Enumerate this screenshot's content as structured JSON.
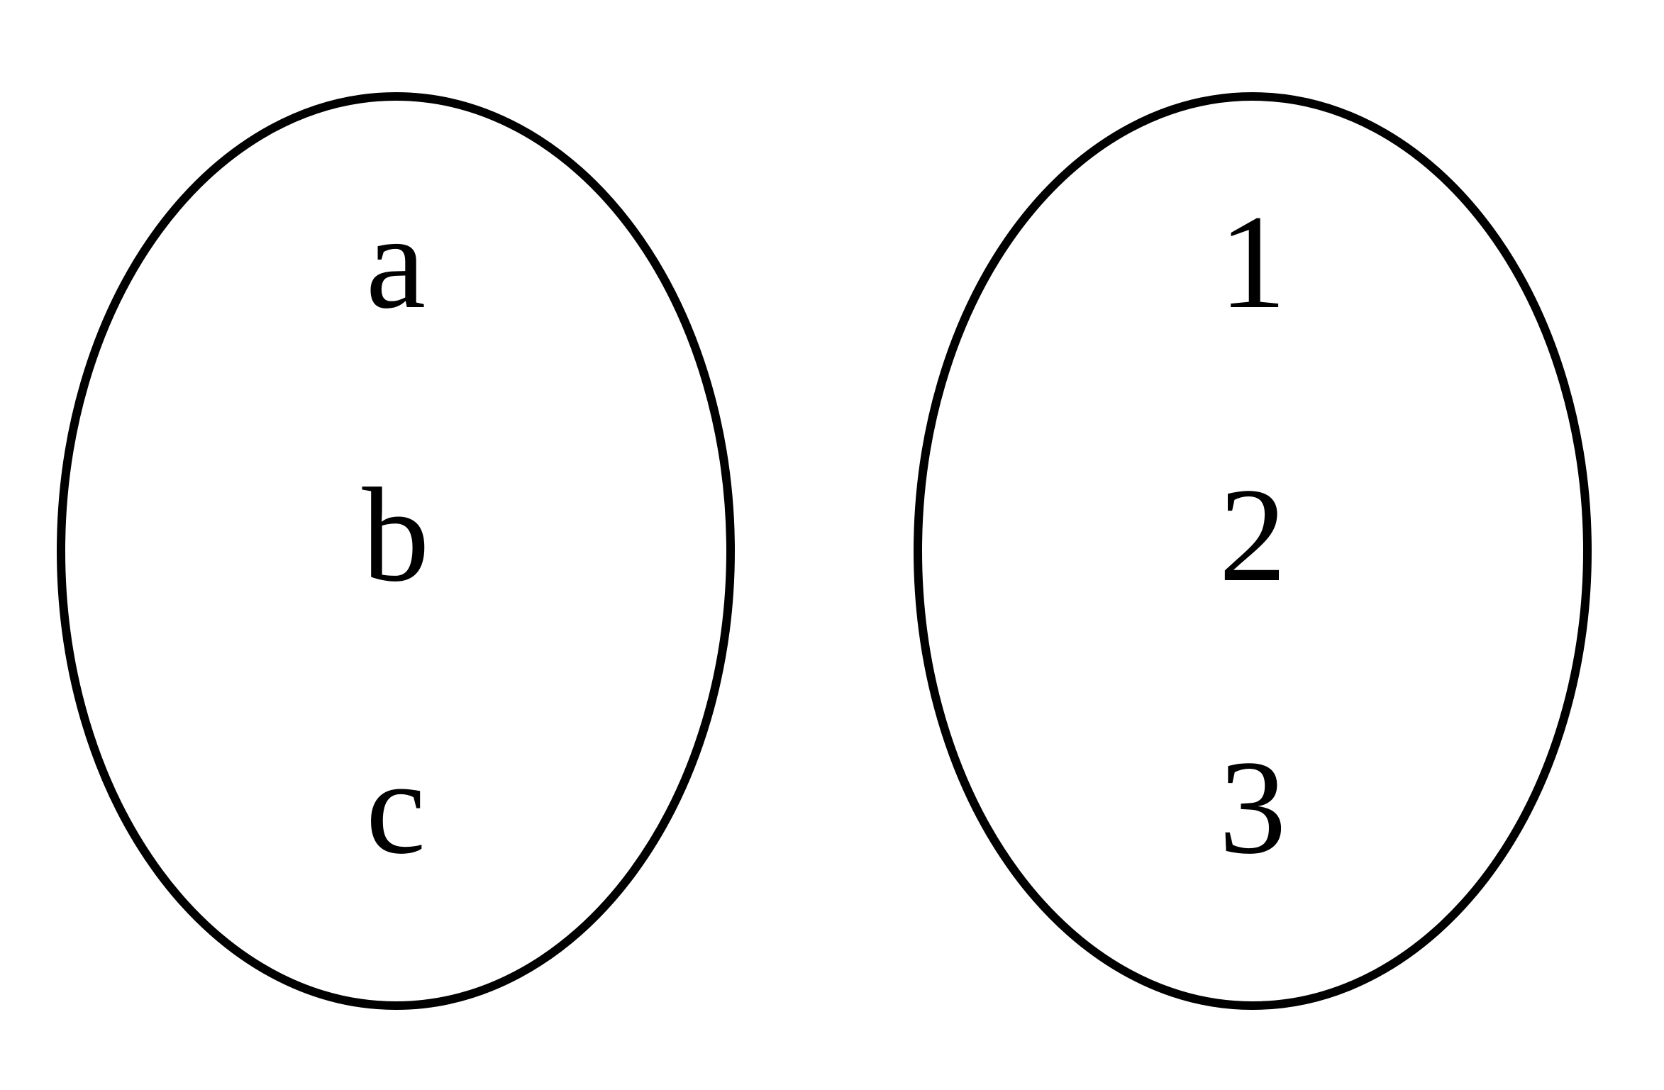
{
  "diagram": {
    "stroke_color": "#000000",
    "background_color": "#ffffff",
    "sets": [
      {
        "elements": [
          "a",
          "b",
          "c"
        ]
      },
      {
        "elements": [
          "1",
          "2",
          "3"
        ]
      }
    ]
  }
}
